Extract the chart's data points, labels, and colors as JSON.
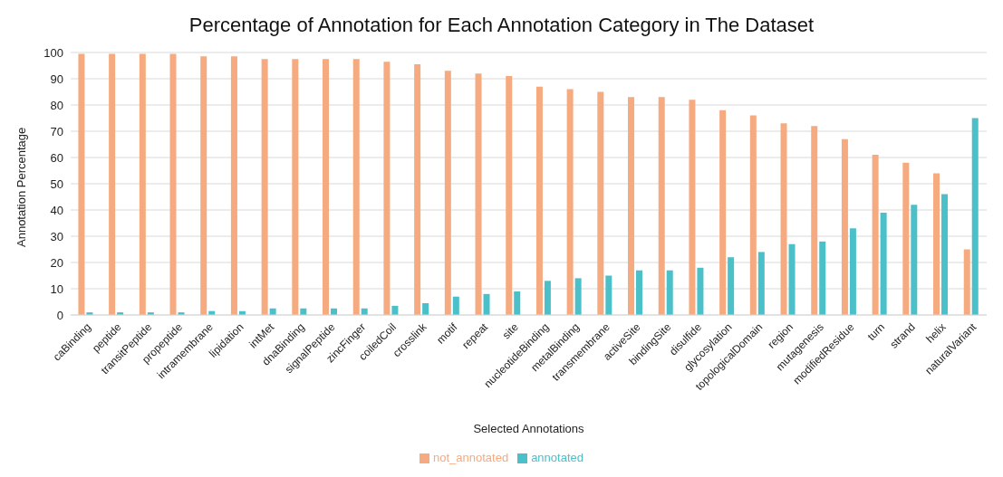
{
  "chart_data": {
    "type": "bar",
    "title": "Percentage of Annotation for Each Annotation Category in The Dataset",
    "xlabel": "Selected Annotations",
    "ylabel": "Annotation Percentage",
    "categories": [
      "caBinding",
      "peptide",
      "transitPeptide",
      "propeptide",
      "intramembrane",
      "lipidation",
      "intMet",
      "dnaBinding",
      "signalPeptide",
      "zincFinger",
      "coiledCoil",
      "crosslink",
      "motif",
      "repeat",
      "site",
      "nucleotideBinding",
      "metalBinding",
      "transmembrane",
      "activeSite",
      "bindingSite",
      "disulfide",
      "glycosylation",
      "topologicalDomain",
      "region",
      "mutagenesis",
      "modifiedResidue",
      "turn",
      "strand",
      "helix",
      "naturalVariant"
    ],
    "series": [
      {
        "name": "not_annotated",
        "color": "#f5aa80",
        "values": [
          99.5,
          99.5,
          99.5,
          99.5,
          98.5,
          98.5,
          97.5,
          97.5,
          97.5,
          97.5,
          96.5,
          95.5,
          93,
          92,
          91,
          87,
          86,
          85,
          83,
          83,
          82,
          78,
          76,
          73,
          72,
          67,
          61,
          58,
          54,
          25
        ]
      },
      {
        "name": "annotated",
        "color": "#4bc0c8",
        "values": [
          1,
          1,
          1,
          1,
          1.5,
          1.5,
          2.5,
          2.5,
          2.5,
          2.5,
          3.5,
          4.5,
          7,
          8,
          9,
          13,
          14,
          15,
          17,
          17,
          18,
          22,
          24,
          27,
          28,
          33,
          39,
          42,
          46,
          75
        ]
      }
    ],
    "ylim": [
      0,
      100
    ],
    "yticks": [
      0,
      10,
      20,
      30,
      40,
      50,
      60,
      70,
      80,
      90,
      100
    ],
    "grid": "y",
    "legend": "bottom"
  }
}
